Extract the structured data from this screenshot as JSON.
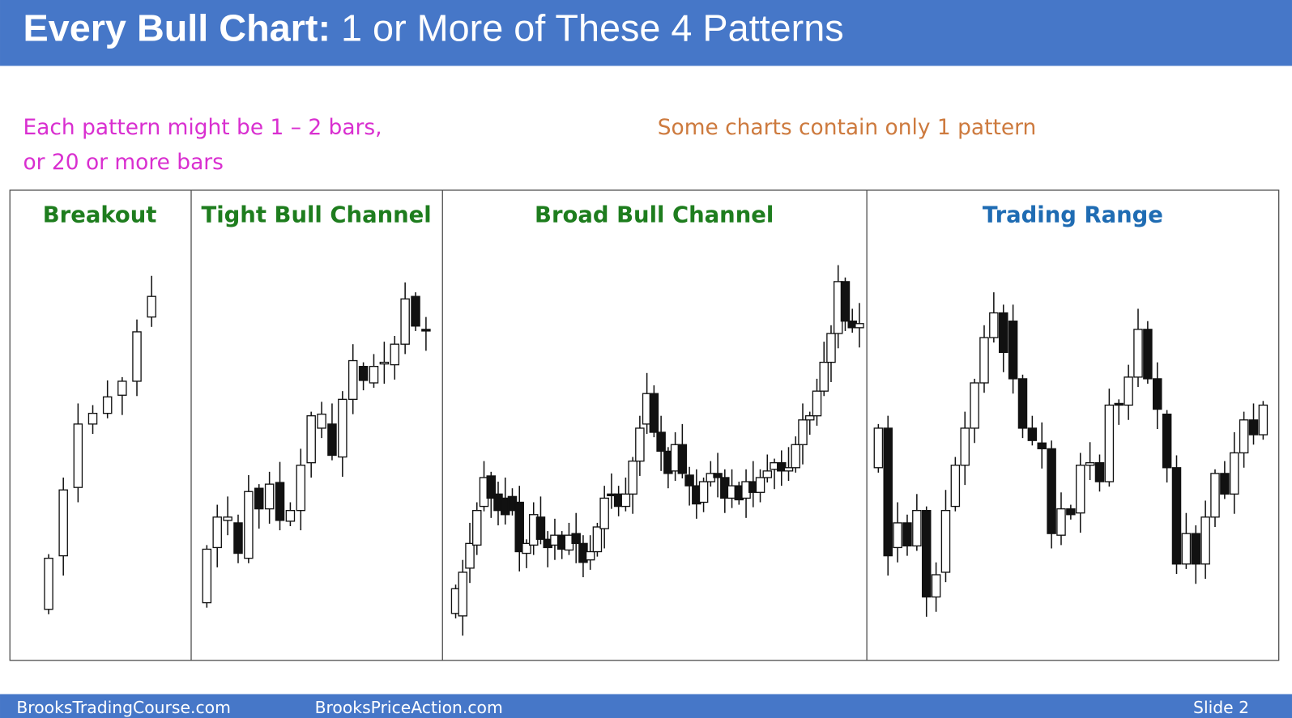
{
  "header": {
    "title_bold": "Every Bull Chart:",
    "title_rest": "1 or More of These 4 Patterns"
  },
  "notes": {
    "left": [
      "Each pattern might be 1 – 2 bars,",
      "or 20 or more bars"
    ],
    "right": "Some charts contain only 1 pattern"
  },
  "panels": [
    {
      "title": "Breakout"
    },
    {
      "title": "Tight Bull Channel"
    },
    {
      "title": "Broad Bull Channel"
    },
    {
      "title": "Trading Range"
    }
  ],
  "footer": {
    "left": "BrooksTradingCourse.com",
    "middle": "BrooksPriceAction.com",
    "right": "Slide  2"
  }
}
